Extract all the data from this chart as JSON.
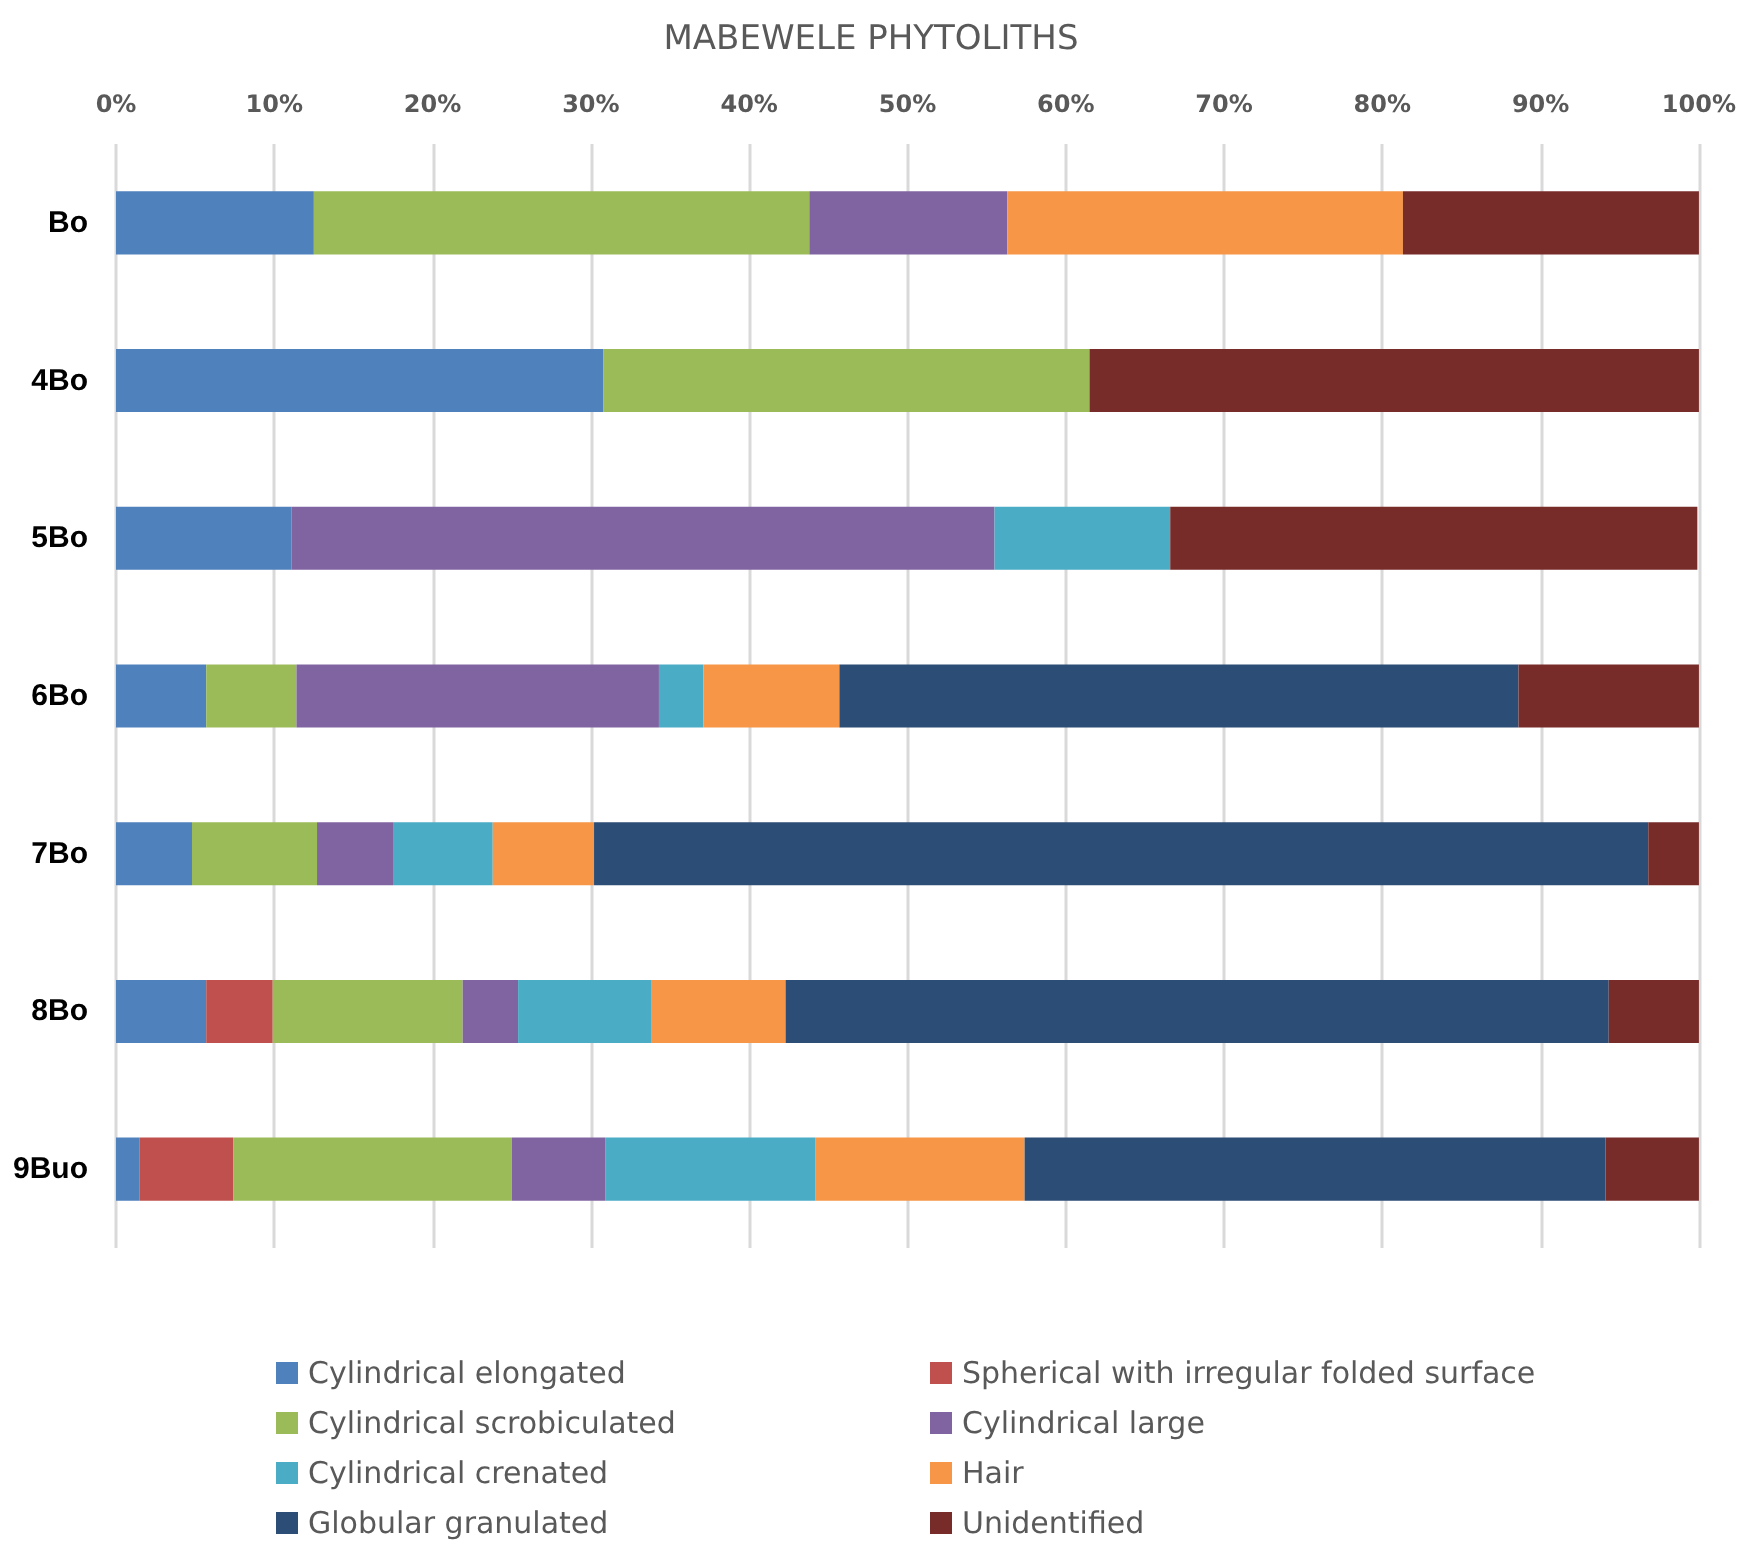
{
  "chart_data": {
    "type": "bar",
    "title": "MABEWELE PHYTOLITHS",
    "orientation": "horizontal",
    "stacked": true,
    "grid": "x",
    "legend": "bottom",
    "categories": [
      "Bo",
      "4Bo",
      "5Bo",
      "6Bo",
      "7Bo",
      "8Bo",
      "9Buo"
    ],
    "xlim": [
      0,
      100
    ],
    "xticks": [
      {
        "value": 0,
        "label": "0%"
      },
      {
        "value": 10,
        "label": "10%"
      },
      {
        "value": 20,
        "label": "20%"
      },
      {
        "value": 30,
        "label": "30%"
      },
      {
        "value": 40,
        "label": "40%"
      },
      {
        "value": 50,
        "label": "50%"
      },
      {
        "value": 60,
        "label": "60%"
      },
      {
        "value": 70,
        "label": "70%"
      },
      {
        "value": 80,
        "label": "80%"
      },
      {
        "value": 90,
        "label": "90%"
      },
      {
        "value": 100,
        "label": "100%"
      }
    ],
    "series": [
      {
        "name": "Cylindrical elongated",
        "color": "#4f81bd",
        "values": [
          12.5,
          30.8,
          11.1,
          5.7,
          4.8,
          5.7,
          1.5
        ]
      },
      {
        "name": "Spherical with irregular folded surface",
        "color": "#c0504d",
        "values": [
          0,
          0,
          0,
          0,
          0,
          4.2,
          5.9
        ]
      },
      {
        "name": "Cylindrical scrobiculated",
        "color": "#9bbb59",
        "values": [
          31.3,
          30.7,
          0,
          5.7,
          7.9,
          12.0,
          17.6
        ]
      },
      {
        "name": "Cylindrical large",
        "color": "#8064a2",
        "values": [
          12.5,
          0,
          44.4,
          22.9,
          4.8,
          3.5,
          5.9
        ]
      },
      {
        "name": "Cylindrical crenated",
        "color": "#4bacc6",
        "values": [
          0,
          0,
          11.1,
          2.8,
          6.3,
          8.4,
          13.3
        ]
      },
      {
        "name": "Hair",
        "color": "#f79646",
        "values": [
          25.0,
          0,
          0,
          8.6,
          6.4,
          8.5,
          13.2
        ]
      },
      {
        "name": "Globular granulated",
        "color": "#2c4d75",
        "values": [
          0,
          0,
          0,
          42.9,
          66.6,
          52.0,
          36.7
        ]
      },
      {
        "name": "Unidentified",
        "color": "#772c2a",
        "values": [
          18.7,
          38.5,
          33.3,
          11.4,
          3.2,
          5.7,
          5.9
        ]
      }
    ]
  }
}
